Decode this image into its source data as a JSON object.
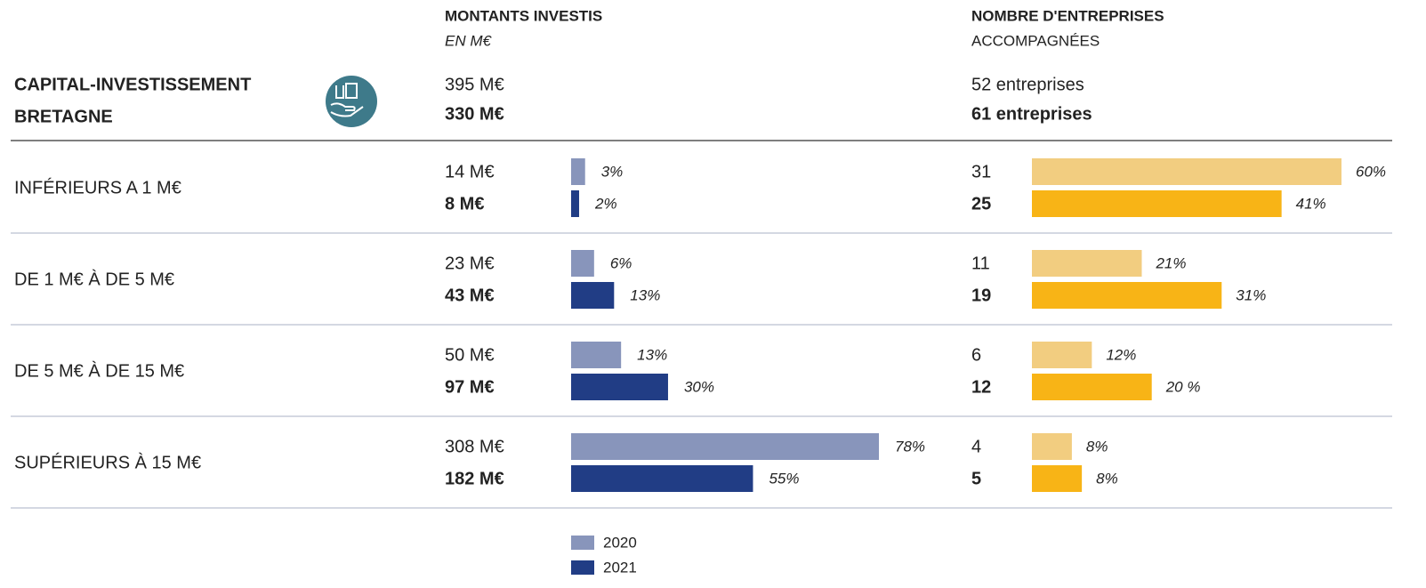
{
  "header": {
    "title_lines": [
      "CAPITAL-INVESTISSEMENT",
      "BRETAGNE"
    ],
    "col1_title": "MONTANTS INVESTIS",
    "col1_sub": "EN M€",
    "col2_title": "NOMBRE D'ENTREPRISES",
    "col2_sub": "ACCOMPAGNÉES"
  },
  "totals": {
    "amount_labels": [
      "395 M€",
      "330 M€"
    ],
    "count_labels": [
      "52 entreprises",
      "61 entreprises"
    ]
  },
  "series": [
    {
      "name": "2020",
      "amount_color": "#8895bb",
      "count_color": "#f2cd80"
    },
    {
      "name": "2021",
      "amount_color": "#213d85",
      "count_color": "#f8b416"
    }
  ],
  "rows": [
    {
      "label": "INFÉRIEURS A 1 M€",
      "amounts": [
        14,
        8
      ],
      "amount_labels": [
        "14 M€",
        "8 M€"
      ],
      "amount_shares": [
        3,
        2
      ],
      "amount_share_labels": [
        "3%",
        "2%"
      ],
      "counts": [
        31,
        25
      ],
      "count_shares": [
        60,
        41
      ],
      "count_share_labels": [
        "60%",
        "41%"
      ]
    },
    {
      "label": "DE 1 M€ À DE 5 M€",
      "amounts": [
        23,
        43
      ],
      "amount_labels": [
        "23 M€",
        "43 M€"
      ],
      "amount_shares": [
        6,
        13
      ],
      "amount_share_labels": [
        "6%",
        "13%"
      ],
      "counts": [
        11,
        19
      ],
      "count_shares": [
        21,
        31
      ],
      "count_share_labels": [
        "21%",
        "31%"
      ]
    },
    {
      "label": "DE 5 M€ À DE 15 M€",
      "amounts": [
        50,
        97
      ],
      "amount_labels": [
        "50 M€",
        "97 M€"
      ],
      "amount_shares": [
        13,
        30
      ],
      "amount_share_labels": [
        "13%",
        "30%"
      ],
      "counts": [
        6,
        12
      ],
      "count_shares": [
        12,
        20
      ],
      "count_share_labels": [
        "12%",
        "20 %"
      ]
    },
    {
      "label": "SUPÉRIEURS À 15 M€",
      "amounts": [
        308,
        182
      ],
      "amount_labels": [
        "308 M€",
        "182 M€"
      ],
      "amount_shares": [
        78,
        55
      ],
      "amount_share_labels": [
        "78%",
        "55%"
      ],
      "counts": [
        4,
        5
      ],
      "count_shares": [
        8,
        8
      ],
      "count_share_labels": [
        "8%",
        "8%"
      ]
    }
  ]
}
